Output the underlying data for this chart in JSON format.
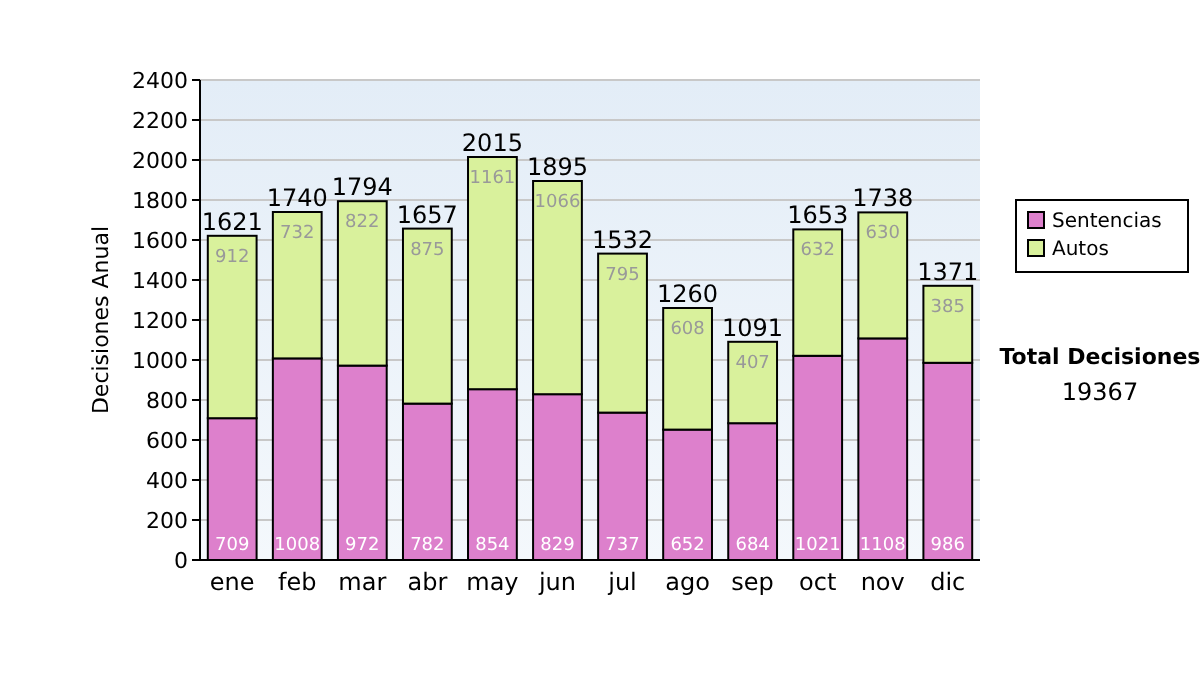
{
  "chart_data": {
    "type": "bar",
    "stacked": true,
    "ylabel": "Decisiones Anual",
    "categories": [
      "ene",
      "feb",
      "mar",
      "abr",
      "may",
      "jun",
      "jul",
      "ago",
      "sep",
      "oct",
      "nov",
      "dic"
    ],
    "series": [
      {
        "name": "Sentencias",
        "color": "#dd80cc",
        "values": [
          709,
          1008,
          972,
          782,
          854,
          829,
          737,
          652,
          684,
          1021,
          1108,
          986
        ]
      },
      {
        "name": "Autos",
        "color": "#d9f19c",
        "values": [
          912,
          732,
          822,
          875,
          1161,
          1066,
          795,
          608,
          407,
          632,
          630,
          385
        ]
      }
    ],
    "totals": [
      "1621",
      "1740",
      "1794",
      "1657",
      "2015",
      "1895",
      "1532",
      "1260",
      "1091",
      "1653",
      "1738",
      "1371"
    ],
    "data_labels": true,
    "ylim": [
      0,
      2400
    ],
    "yticks": [
      0,
      200,
      400,
      600,
      800,
      1000,
      1200,
      1400,
      1600,
      1800,
      2000,
      2200,
      2400
    ],
    "grid": "y",
    "legend": "right",
    "annotations": [
      "Total Decisiones",
      "19367"
    ]
  }
}
